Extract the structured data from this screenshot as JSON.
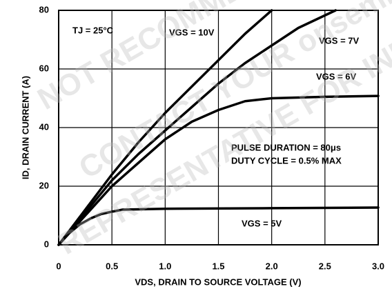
{
  "chart_data": {
    "type": "line",
    "x_label": "VDS, DRAIN TO SOURCE VOLTAGE (V)",
    "y_label": "ID, DRAIN CURRENT (A)",
    "annotations": [
      "TJ = 25°C",
      "PULSE DURATION = 80μs",
      "DUTY CYCLE = 0.5% MAX"
    ],
    "watermark": [
      "NOT RECOMMENDED FOR NEW DESIGN",
      "CONTACT YOUR onsemi",
      "REPRESENTATIVE FOR INFORMATION"
    ],
    "xlim": [
      0,
      3
    ],
    "ylim": [
      0,
      80
    ],
    "xticks": [
      0,
      0.5,
      {
        "value": 1,
        "label": "1.0"
      },
      1.5,
      {
        "value": 2,
        "label": "2.0"
      },
      2.5,
      {
        "value": 3,
        "label": "3.0"
      }
    ],
    "yticks": [
      0,
      20,
      40,
      60,
      80
    ],
    "grid": true,
    "series": [
      {
        "name": "VGS = 10V",
        "color": "#000000",
        "x": [
          0,
          0.25,
          0.5,
          0.75,
          1,
          1.25,
          1.5,
          1.75,
          2
        ],
        "values": [
          0,
          12,
          24,
          35,
          45,
          54,
          63,
          72,
          80
        ]
      },
      {
        "name": "VGS = 7V",
        "color": "#000000",
        "x": [
          0,
          0.25,
          0.5,
          0.75,
          1,
          1.25,
          1.5,
          1.75,
          2,
          2.25,
          2.6
        ],
        "values": [
          0,
          11,
          22,
          31,
          39,
          47,
          55,
          62,
          68,
          74,
          80
        ]
      },
      {
        "name": "VGS = 6V",
        "color": "#000000",
        "x": [
          0,
          0.25,
          0.5,
          0.75,
          1,
          1.25,
          1.5,
          1.75,
          2,
          2.5,
          3
        ],
        "values": [
          0,
          10,
          20,
          28,
          36,
          42,
          46,
          49,
          50,
          50.5,
          50.8
        ]
      },
      {
        "name": "VGS = 5V",
        "color": "#000000",
        "x": [
          0,
          0.1,
          0.2,
          0.3,
          0.4,
          0.5,
          0.6,
          1,
          2,
          3
        ],
        "values": [
          0,
          4,
          7,
          9,
          10.5,
          11.3,
          12,
          12.3,
          12.5,
          12.7
        ]
      }
    ]
  }
}
